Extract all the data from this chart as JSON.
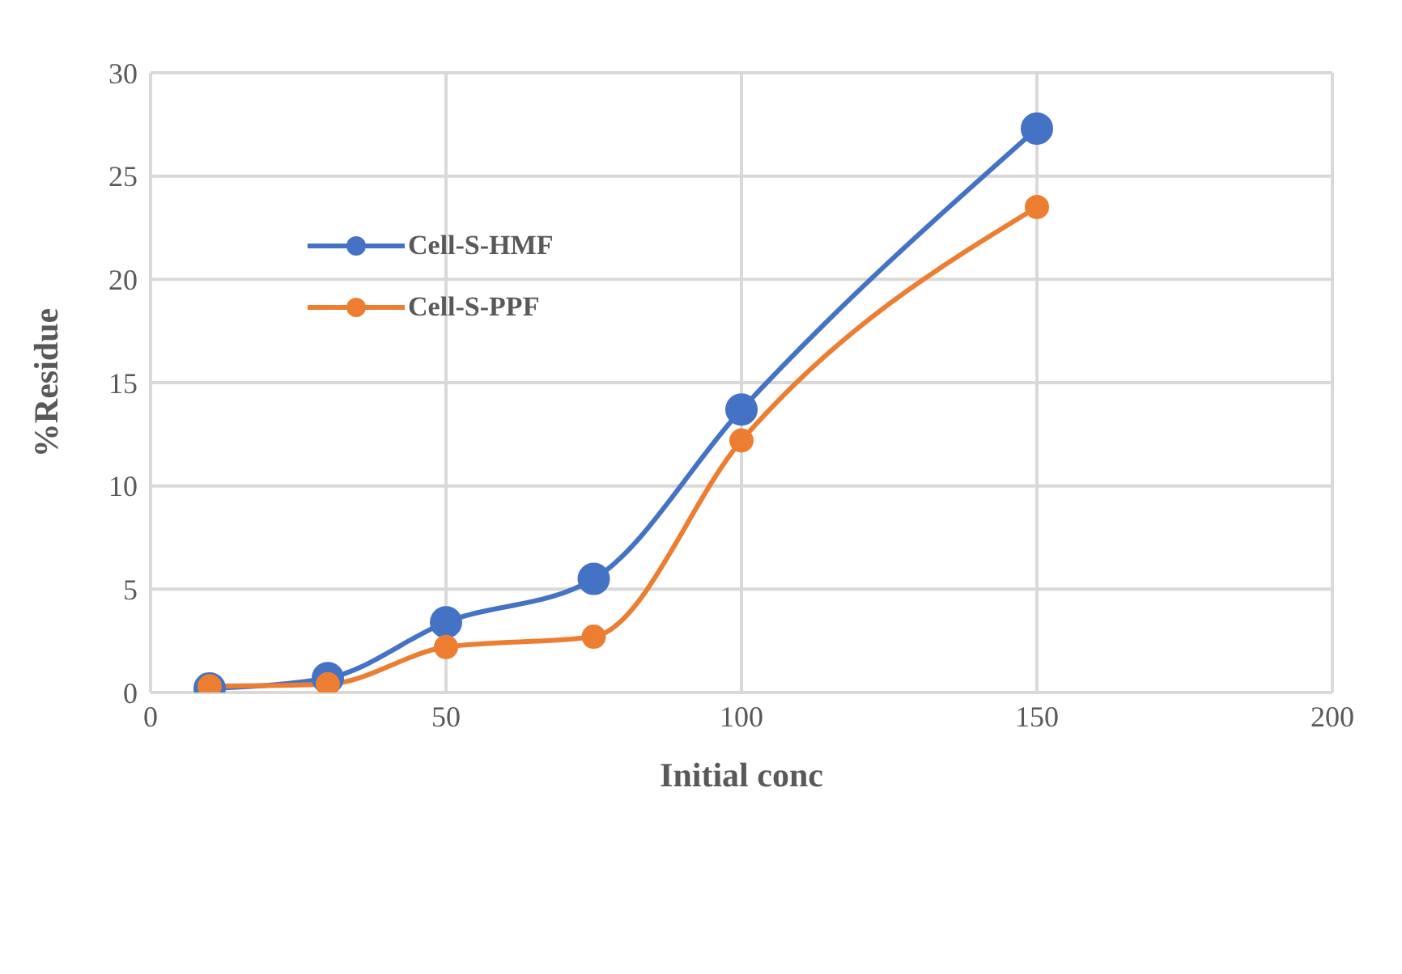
{
  "chart_data": {
    "type": "line",
    "xlabel": "Initial conc",
    "ylabel": "%Residue",
    "x": [
      10,
      30,
      50,
      75,
      100,
      150
    ],
    "series": [
      {
        "name": "Cell-S-HMF",
        "color": "#4472c4",
        "values": [
          0.2,
          0.7,
          3.4,
          5.5,
          13.7,
          27.3
        ]
      },
      {
        "name": "Cell-S-PPF",
        "color": "#ed7d31",
        "values": [
          0.3,
          0.4,
          2.2,
          2.7,
          12.2,
          23.5
        ]
      }
    ],
    "xlim": [
      0,
      200
    ],
    "xticks": [
      0,
      50,
      100,
      150,
      200
    ],
    "ylim": [
      0,
      30
    ],
    "yticks": [
      0,
      5,
      10,
      15,
      20,
      25,
      30
    ],
    "grid": true,
    "legend": "top left",
    "marker": "circle",
    "line_style": "solid"
  }
}
